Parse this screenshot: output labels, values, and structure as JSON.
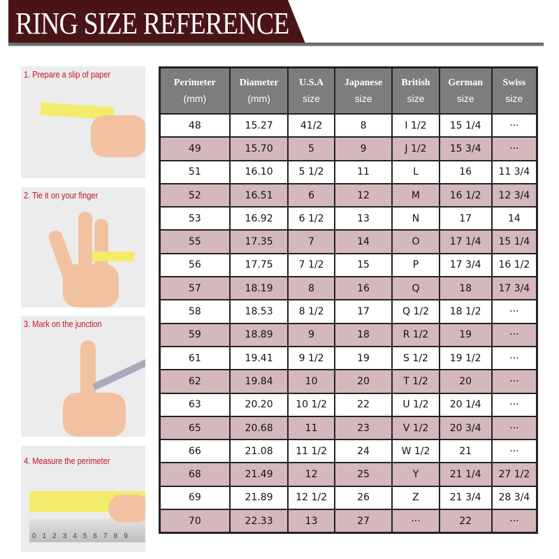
{
  "title": "RING SIZE REFERENCE",
  "colors": {
    "banner": "#4a1416",
    "header": "#7d7d7d",
    "alt_row": "#d4b8bc",
    "step_text": "#c0161c"
  },
  "steps": [
    {
      "label": "1. Prepare a slip of paper"
    },
    {
      "label": "2. Tie it on your finger"
    },
    {
      "label": "3. Mark on the junction"
    },
    {
      "label": "4. Measure the perimeter"
    }
  ],
  "ruler_ticks": [
    "0",
    "1",
    "2",
    "3",
    "4",
    "5",
    "6",
    "7",
    "8",
    "9"
  ],
  "table": {
    "headers": [
      {
        "main": "Perimeter",
        "sub": "(mm)"
      },
      {
        "main": "Diameter",
        "sub": "(mm)"
      },
      {
        "main": "U.S.A",
        "sub": "size"
      },
      {
        "main": "Japanese",
        "sub": "size"
      },
      {
        "main": "British",
        "sub": "size"
      },
      {
        "main": "German",
        "sub": "size"
      },
      {
        "main": "Swiss",
        "sub": "size"
      }
    ],
    "rows": [
      [
        "48",
        "15.27",
        "41/2",
        "8",
        "I 1/2",
        "15 1/4",
        "···"
      ],
      [
        "49",
        "15.70",
        "5",
        "9",
        "J 1/2",
        "15 3/4",
        "···"
      ],
      [
        "51",
        "16.10",
        "5 1/2",
        "11",
        "L",
        "16",
        "11 3/4"
      ],
      [
        "52",
        "16.51",
        "6",
        "12",
        "M",
        "16 1/2",
        "12 3/4"
      ],
      [
        "53",
        "16.92",
        "6 1/2",
        "13",
        "N",
        "17",
        "14"
      ],
      [
        "55",
        "17.35",
        "7",
        "14",
        "O",
        "17 1/4",
        "15 1/4"
      ],
      [
        "56",
        "17.75",
        "7 1/2",
        "15",
        "P",
        "17 3/4",
        "16 1/2"
      ],
      [
        "57",
        "18.19",
        "8",
        "16",
        "Q",
        "18",
        "17 3/4"
      ],
      [
        "58",
        "18.53",
        "8 1/2",
        "17",
        "Q 1/2",
        "18 1/2",
        "···"
      ],
      [
        "59",
        "18.89",
        "9",
        "18",
        "R 1/2",
        "19",
        "···"
      ],
      [
        "61",
        "19.41",
        "9 1/2",
        "19",
        "S 1/2",
        "19 1/2",
        "···"
      ],
      [
        "62",
        "19.84",
        "10",
        "20",
        "T 1/2",
        "20",
        "···"
      ],
      [
        "63",
        "20.20",
        "10 1/2",
        "22",
        "U 1/2",
        "20 1/4",
        "···"
      ],
      [
        "65",
        "20.68",
        "11",
        "23",
        "V 1/2",
        "20 3/4",
        "···"
      ],
      [
        "66",
        "21.08",
        "11 1/2",
        "24",
        "W 1/2",
        "21",
        "···"
      ],
      [
        "68",
        "21.49",
        "12",
        "25",
        "Y",
        "21 1/4",
        "27 1/2"
      ],
      [
        "69",
        "21.89",
        "12 1/2",
        "26",
        "Z",
        "21 3/4",
        "28 3/4"
      ],
      [
        "70",
        "22.33",
        "13",
        "27",
        "···",
        "22",
        "···"
      ]
    ]
  }
}
